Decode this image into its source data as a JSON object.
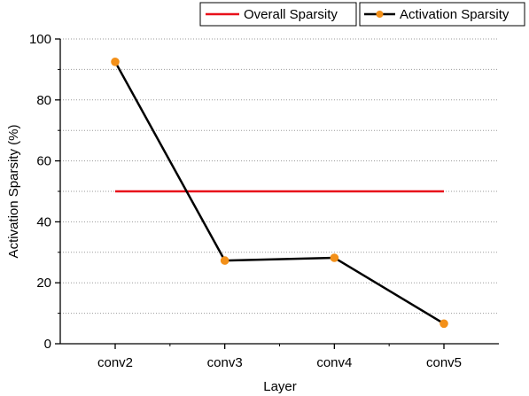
{
  "chart_data": {
    "type": "line",
    "xlabel": "Layer",
    "ylabel": "Activation Sparsity (%)",
    "categories": [
      "conv2",
      "conv3",
      "conv4",
      "conv5"
    ],
    "ylim": [
      0,
      100
    ],
    "yticks": [
      0,
      20,
      40,
      60,
      80,
      100
    ],
    "y_minor_gridlines": [
      10,
      30,
      50,
      70,
      90
    ],
    "grid": "horizontal, dotted minor lines at odd tens",
    "legend_position": "top-right, above plot",
    "series": [
      {
        "name": "Overall Sparsity",
        "values": [
          50,
          50,
          50,
          50
        ],
        "color": "#e8101a",
        "marker": "none"
      },
      {
        "name": "Activation Sparsity",
        "values": [
          92.5,
          27.3,
          28.2,
          6.6
        ],
        "color": "#000000",
        "marker": "circle",
        "marker_color": "#f39019"
      }
    ]
  }
}
